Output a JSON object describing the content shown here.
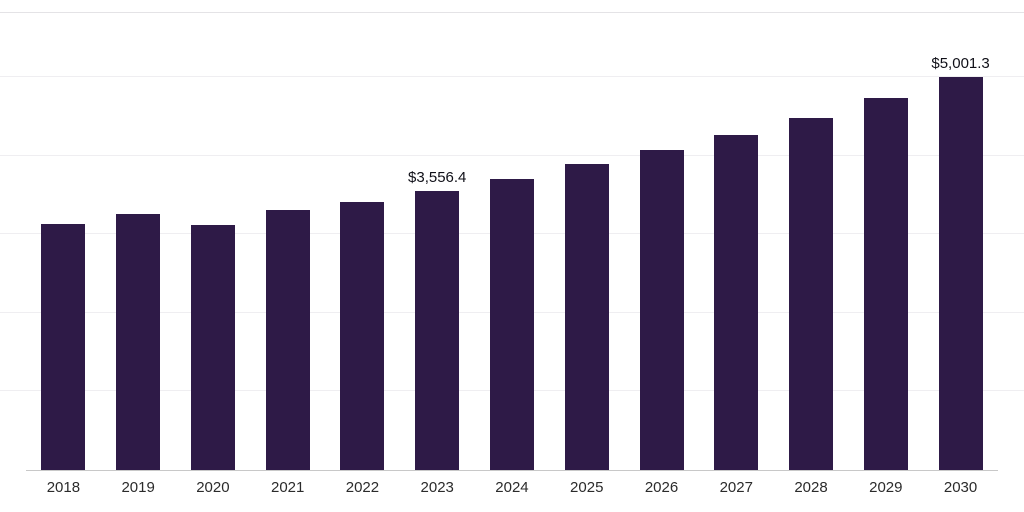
{
  "chart_data": {
    "type": "bar",
    "title": "",
    "xlabel": "",
    "ylabel": "",
    "categories": [
      "2018",
      "2019",
      "2020",
      "2021",
      "2022",
      "2023",
      "2024",
      "2025",
      "2026",
      "2027",
      "2028",
      "2029",
      "2030"
    ],
    "values": [
      3130,
      3260,
      3125,
      3310,
      3415,
      3556.4,
      3705,
      3895,
      4075,
      4265,
      4480,
      4735,
      5001.3
    ],
    "data_labels": [
      null,
      null,
      null,
      null,
      null,
      "$3,556.4",
      null,
      null,
      null,
      null,
      null,
      null,
      "$5,001.3"
    ],
    "ylim": [
      0,
      5820
    ],
    "grid": "horizontal",
    "gridline_values": [
      1000,
      2000,
      3000,
      4000,
      5000,
      5820
    ],
    "legend": "none",
    "bar_color": "#2e1a47",
    "axis_line_color": "#c8c8c8",
    "gridline_color": "#efeef1"
  }
}
